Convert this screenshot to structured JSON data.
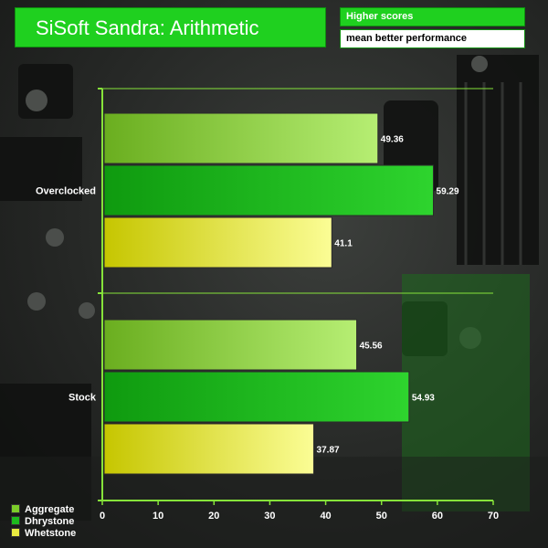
{
  "header": {
    "title": "SiSoft Sandra: Arithmetic",
    "note_line1": "Higher scores",
    "note_line2": "mean better performance"
  },
  "colors": {
    "aggregate": "#7ccc2a",
    "dhrystone": "#1dbb1d",
    "whetstone": "#e8ea40",
    "axis": "#86e33a"
  },
  "chart_data": {
    "type": "bar",
    "orientation": "horizontal",
    "categories": [
      "Overclocked",
      "Stock"
    ],
    "series": [
      {
        "name": "Aggregate",
        "values": [
          49.36,
          45.56
        ]
      },
      {
        "name": "Dhrystone",
        "values": [
          59.29,
          54.93
        ]
      },
      {
        "name": "Whetstone",
        "values": [
          41.1,
          37.87
        ]
      }
    ],
    "x_ticks": [
      0,
      10,
      20,
      30,
      40,
      50,
      60,
      70
    ],
    "xlim": [
      0,
      70
    ],
    "legend_position": "bottom-left",
    "grid": true
  }
}
